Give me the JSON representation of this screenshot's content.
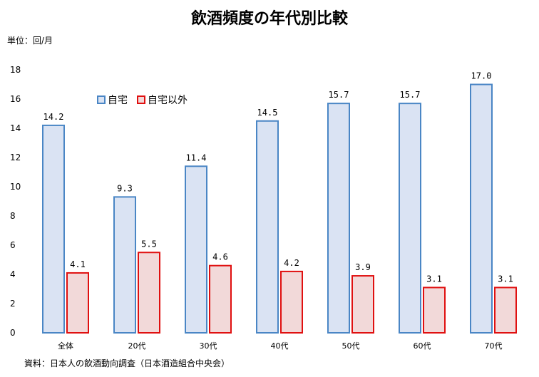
{
  "chart_data": {
    "type": "bar",
    "title": "飲酒頻度の年代別比較",
    "unit_label": "単位：回/月",
    "source": "資料：日本人の飲酒動向調査（日本酒造組合中央会）",
    "categories": [
      "全体",
      "20代",
      "30代",
      "40代",
      "50代",
      "60代",
      "70代"
    ],
    "series": [
      {
        "name": "自宅",
        "values": [
          14.2,
          9.3,
          11.4,
          14.5,
          15.7,
          15.7,
          17.0
        ],
        "labels": [
          "14.2",
          "9.3",
          "11.4",
          "14.5",
          "15.7",
          "15.7",
          "17.0"
        ],
        "fill": "#dae3f3",
        "stroke": "#4a86c5"
      },
      {
        "name": "自宅以外",
        "values": [
          4.1,
          5.5,
          4.6,
          4.2,
          3.9,
          3.1,
          3.1
        ],
        "labels": [
          "4.1",
          "5.5",
          "4.6",
          "4.2",
          "3.9",
          "3.1",
          "3.1"
        ],
        "fill": "#f2d9d9",
        "stroke": "#e01010"
      }
    ],
    "ylim": [
      0,
      18
    ],
    "yticks": [
      "0",
      "2",
      "4",
      "6",
      "8",
      "10",
      "12",
      "14",
      "16",
      "18"
    ],
    "grid": false,
    "legend_position": "top-left"
  }
}
